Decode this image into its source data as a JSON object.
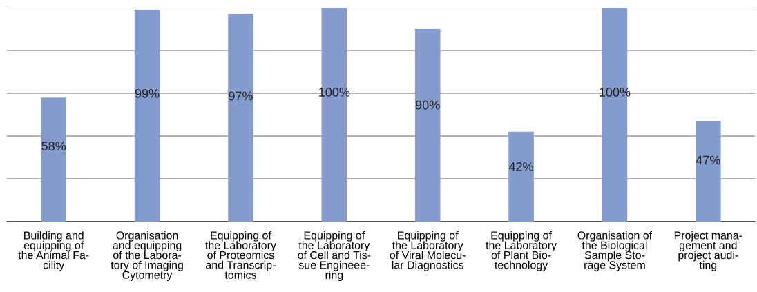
{
  "chart_data": {
    "type": "bar",
    "categories": [
      "Building and\nequipping of\nthe Animal Fa-\ncility",
      "Organisation\nand equipping\nof the Labora-\ntory of Imaging\nCytometry",
      "Equipping of\nthe Laboratory\nof Proteomics\nand Transcrip-\ntomics",
      "Equipping of\nthe Laboratory\nof Cell and Tis-\nsue Engineee-\nring",
      "Equipping of\nthe Laboratory\nof Viral Molecu-\nlar Diagnostics",
      "Equipping of\nthe Laboratory\nof Plant Bio-\ntechnology",
      "Organisation of\nthe Biological\nSample Sto-\nrage System",
      "Project mana-\ngement and\nproject audi-\nting"
    ],
    "values": [
      58,
      99,
      97,
      100,
      90,
      42,
      100,
      47
    ],
    "value_labels": [
      "58%",
      "99%",
      "97%",
      "100%",
      "90%",
      "42%",
      "100%",
      "47%"
    ],
    "color": "#839ccd",
    "ylim": [
      0,
      100
    ],
    "yticks": [
      {
        "value": 0,
        "label": null
      },
      {
        "value": 20,
        "label": null
      },
      {
        "value": 40,
        "label": null
      },
      {
        "value": 60,
        "label": null
      },
      {
        "value": 80,
        "label": null
      },
      {
        "value": 100,
        "label": null
      }
    ],
    "tick_labels": "x",
    "grid": "y",
    "legend": false
  }
}
